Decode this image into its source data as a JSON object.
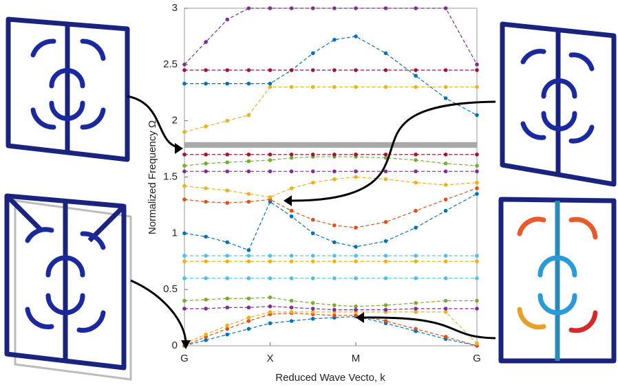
{
  "chart_data": {
    "type": "line",
    "xlabel": "Reduced Wave Vecto, k",
    "ylabel": "Normalized Frequency Ω",
    "x": [
      0,
      0.25,
      0.5,
      0.75,
      1,
      1.25,
      1.5,
      1.75,
      2,
      2.35,
      2.7,
      3.05,
      3.414
    ],
    "xlim": [
      0,
      3.414
    ],
    "xticks": [
      {
        "value": 0,
        "label": "G"
      },
      {
        "value": 1,
        "label": "X"
      },
      {
        "value": 2,
        "label": "M"
      },
      {
        "value": 3.414,
        "label": "G"
      }
    ],
    "ylim": [
      0,
      3
    ],
    "yticks": [
      0,
      0.5,
      1,
      1.5,
      2,
      2.5,
      3
    ],
    "band_gap": [
      1.76,
      1.81
    ],
    "band_gap_color": "#999999",
    "series": [
      {
        "color": "#0072bd",
        "values": [
          0,
          0.05,
          0.1,
          0.15,
          0.2,
          0.22,
          0.24,
          0.25,
          0.26,
          0.2,
          0.13,
          0.06,
          0
        ]
      },
      {
        "color": "#d95319",
        "values": [
          0,
          0.08,
          0.15,
          0.22,
          0.28,
          0.29,
          0.28,
          0.27,
          0.27,
          0.22,
          0.15,
          0.08,
          0
        ]
      },
      {
        "color": "#edb120",
        "values": [
          0.02,
          0.1,
          0.18,
          0.25,
          0.3,
          0.3,
          0.3,
          0.3,
          0.3,
          0.3,
          0.3,
          0.3,
          0.02
        ]
      },
      {
        "color": "#7e2f8e",
        "values": [
          0.33,
          0.33,
          0.34,
          0.34,
          0.35,
          0.34,
          0.33,
          0.32,
          0.32,
          0.32,
          0.33,
          0.33,
          0.33
        ]
      },
      {
        "color": "#77ac30",
        "values": [
          0.4,
          0.41,
          0.42,
          0.42,
          0.43,
          0.4,
          0.38,
          0.36,
          0.35,
          0.36,
          0.38,
          0.4,
          0.4
        ]
      },
      {
        "color": "#4dbeee",
        "values": [
          0.6,
          0.6,
          0.6,
          0.6,
          0.6,
          0.6,
          0.6,
          0.6,
          0.6,
          0.6,
          0.6,
          0.6,
          0.6
        ]
      },
      {
        "color": "#edb120",
        "values": [
          0.75,
          0.75,
          0.75,
          0.75,
          0.75,
          0.75,
          0.75,
          0.75,
          0.75,
          0.75,
          0.75,
          0.75,
          0.75
        ]
      },
      {
        "color": "#4dbeee",
        "values": [
          0.8,
          0.8,
          0.8,
          0.8,
          0.8,
          0.8,
          0.8,
          0.8,
          0.8,
          0.8,
          0.8,
          0.8,
          0.8
        ]
      },
      {
        "color": "#0072bd",
        "values": [
          1.0,
          0.97,
          0.92,
          0.85,
          1.28,
          1.15,
          1.0,
          0.92,
          0.88,
          0.93,
          1.05,
          1.2,
          1.35
        ]
      },
      {
        "color": "#d95319",
        "values": [
          1.3,
          1.28,
          1.27,
          1.28,
          1.3,
          1.2,
          1.12,
          1.07,
          1.05,
          1.1,
          1.2,
          1.3,
          1.4
        ]
      },
      {
        "color": "#edb120",
        "values": [
          1.42,
          1.4,
          1.38,
          1.35,
          1.32,
          1.4,
          1.45,
          1.48,
          1.5,
          1.48,
          1.45,
          1.43,
          1.45
        ]
      },
      {
        "color": "#7e2f8e",
        "values": [
          1.55,
          1.55,
          1.55,
          1.55,
          1.55,
          1.55,
          1.55,
          1.55,
          1.55,
          1.55,
          1.55,
          1.55,
          1.55
        ]
      },
      {
        "color": "#77ac30",
        "values": [
          1.6,
          1.62,
          1.63,
          1.64,
          1.65,
          1.67,
          1.68,
          1.68,
          1.68,
          1.67,
          1.65,
          1.62,
          1.6
        ]
      },
      {
        "color": "#a2142f",
        "values": [
          1.7,
          1.7,
          1.7,
          1.7,
          1.7,
          1.7,
          1.7,
          1.7,
          1.7,
          1.7,
          1.7,
          1.7,
          1.7
        ]
      },
      {
        "color": "#edb120",
        "values": [
          1.9,
          1.95,
          2.0,
          2.05,
          2.3,
          2.3,
          2.3,
          2.3,
          2.3,
          2.3,
          2.3,
          2.3,
          2.3
        ]
      },
      {
        "color": "#0072bd",
        "values": [
          2.33,
          2.33,
          2.33,
          2.33,
          2.33,
          2.45,
          2.6,
          2.72,
          2.75,
          2.6,
          2.4,
          2.2,
          2.05
        ]
      },
      {
        "color": "#a2142f",
        "values": [
          2.45,
          2.45,
          2.45,
          2.45,
          2.45,
          2.45,
          2.45,
          2.45,
          2.45,
          2.45,
          2.45,
          2.45,
          2.45
        ]
      },
      {
        "color": "#7e2f8e",
        "values": [
          2.5,
          2.7,
          2.9,
          3.0,
          3.0,
          3.0,
          3.0,
          3.0,
          3.0,
          3.0,
          3.0,
          3.0,
          2.5
        ]
      }
    ]
  }
}
